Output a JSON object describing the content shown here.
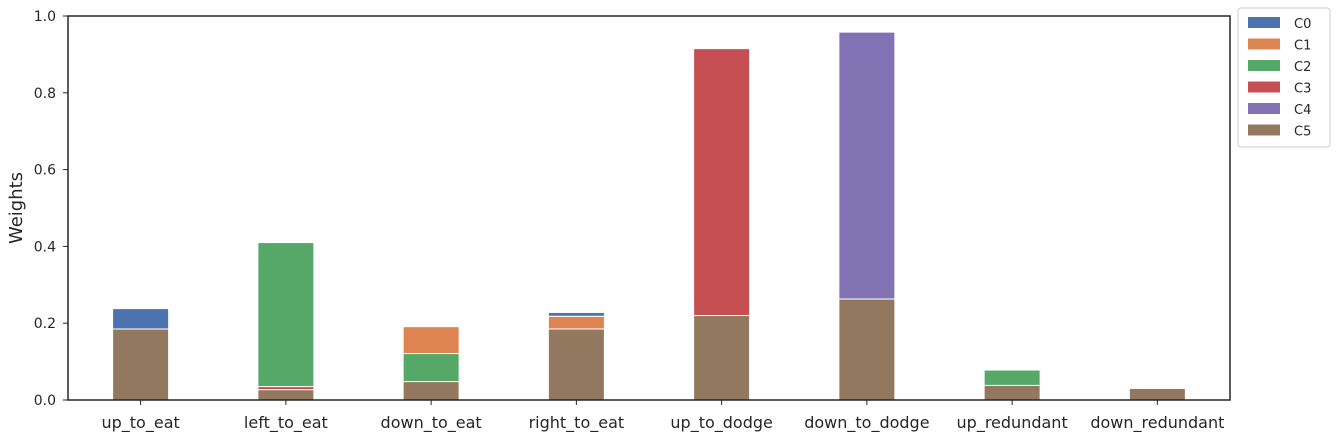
{
  "chart_data": {
    "type": "bar",
    "stacked": true,
    "categories": [
      "up_to_eat",
      "left_to_eat",
      "down_to_eat",
      "right_to_eat",
      "up_to_dodge",
      "down_to_dodge",
      "up_redundant",
      "down_redundant"
    ],
    "series": [
      {
        "name": "C5",
        "color": "#937860",
        "values": [
          0.185,
          0.027,
          0.048,
          0.185,
          0.22,
          0.263,
          0.038,
          0.03
        ]
      },
      {
        "name": "C4",
        "color": "#8172b3",
        "values": [
          0,
          0,
          0,
          0,
          0,
          0.695,
          0,
          0
        ]
      },
      {
        "name": "C3",
        "color": "#c44e52",
        "values": [
          0,
          0.008,
          0,
          0,
          0.695,
          0,
          0,
          0
        ]
      },
      {
        "name": "C2",
        "color": "#55a868",
        "values": [
          0,
          0.375,
          0.073,
          0,
          0,
          0,
          0.04,
          0
        ]
      },
      {
        "name": "C1",
        "color": "#dd8452",
        "values": [
          0,
          0,
          0.07,
          0.033,
          0,
          0,
          0,
          0
        ]
      },
      {
        "name": "C0",
        "color": "#4c72b0",
        "values": [
          0.053,
          0,
          0,
          0.01,
          0,
          0,
          0,
          0
        ]
      }
    ],
    "legend_order": [
      "C0",
      "C1",
      "C2",
      "C3",
      "C4",
      "C5"
    ],
    "ylabel": "Weights",
    "xlabel": "",
    "ylim": [
      0,
      1.0
    ],
    "yticks": [
      "0.0",
      "0.2",
      "0.4",
      "0.6",
      "0.8",
      "1.0"
    ],
    "grid": false,
    "legend_position": "outside-top-right"
  }
}
